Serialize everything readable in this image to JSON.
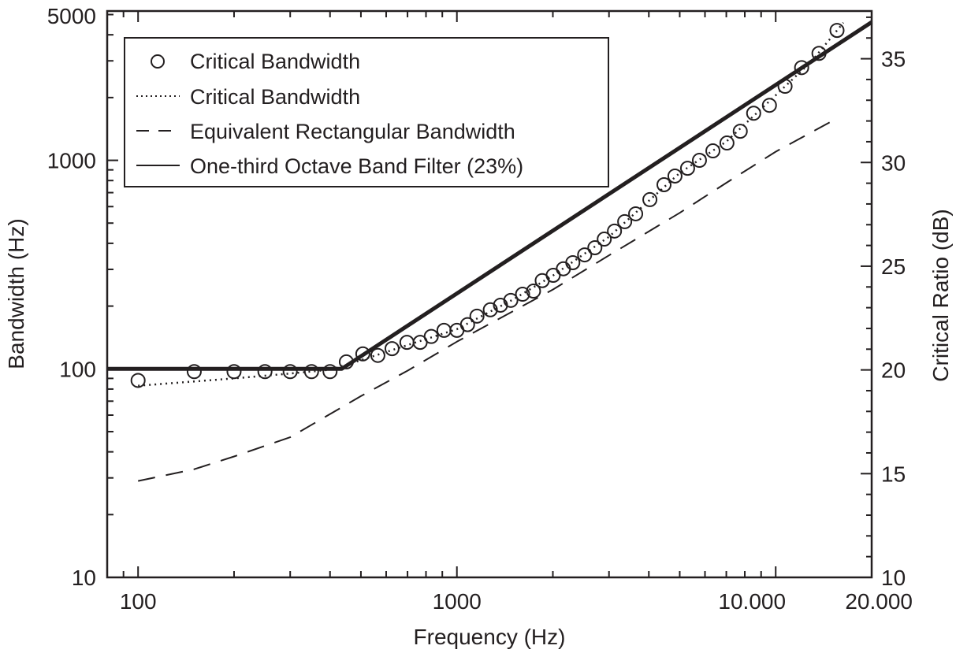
{
  "chart_data": {
    "type": "line",
    "xlabel": "Frequency (Hz)",
    "ylabel": "Bandwidth (Hz)",
    "y2label": "Critical Ratio (dB)",
    "x_scale": "log",
    "y_scale": "log",
    "xlim": [
      80,
      20000
    ],
    "ylim": [
      10,
      5200
    ],
    "y2lim": [
      10,
      37.3
    ],
    "x_ticks": [
      {
        "value": 100,
        "label": "100"
      },
      {
        "value": 1000,
        "label": "1000"
      },
      {
        "value": 10000,
        "label": "10.000"
      },
      {
        "value": 20000,
        "label": "20.000"
      }
    ],
    "y_ticks": [
      {
        "value": 10,
        "label": "10"
      },
      {
        "value": 100,
        "label": "100"
      },
      {
        "value": 1000,
        "label": "1000"
      },
      {
        "value": 5000,
        "label": "5000"
      }
    ],
    "y2_ticks": [
      {
        "value": 10,
        "label": "10"
      },
      {
        "value": 15,
        "label": "15"
      },
      {
        "value": 20,
        "label": "20"
      },
      {
        "value": 25,
        "label": "25"
      },
      {
        "value": 30,
        "label": "30"
      },
      {
        "value": 35,
        "label": "35"
      }
    ],
    "grid": false,
    "legend_position": "top-left",
    "color": "#231f20",
    "series": [
      {
        "name": "Critical Bandwidth",
        "style": "circles",
        "points": [
          [
            100,
            88
          ],
          [
            150,
            97
          ],
          [
            200,
            97
          ],
          [
            250,
            97
          ],
          [
            300,
            97
          ],
          [
            350,
            97
          ],
          [
            400,
            97
          ],
          [
            450,
            108
          ],
          [
            507,
            118
          ],
          [
            565,
            116
          ],
          [
            626,
            125
          ],
          [
            697,
            134
          ],
          [
            767,
            134
          ],
          [
            831,
            143
          ],
          [
            911,
            153
          ],
          [
            1000,
            153
          ],
          [
            1080,
            163
          ],
          [
            1156,
            179
          ],
          [
            1273,
            192
          ],
          [
            1370,
            202
          ],
          [
            1476,
            213
          ],
          [
            1607,
            228
          ],
          [
            1739,
            236
          ],
          [
            1852,
            265
          ],
          [
            2005,
            281
          ],
          [
            2158,
            302
          ],
          [
            2310,
            323
          ],
          [
            2516,
            352
          ],
          [
            2709,
            381
          ],
          [
            2899,
            419
          ],
          [
            3121,
            458
          ],
          [
            3360,
            508
          ],
          [
            3637,
            554
          ],
          [
            4030,
            648
          ],
          [
            4463,
            764
          ],
          [
            4831,
            841
          ],
          [
            5292,
            916
          ],
          [
            5765,
            1000
          ],
          [
            6353,
            1110
          ],
          [
            7032,
            1211
          ],
          [
            7741,
            1379
          ],
          [
            8529,
            1682
          ],
          [
            9557,
            1836
          ],
          [
            10700,
            2265
          ],
          [
            12060,
            2784
          ],
          [
            13670,
            3258
          ],
          [
            15570,
            4198
          ]
        ]
      },
      {
        "name": "Critical Bandwidth",
        "style": "dotted",
        "points": [
          [
            100,
            83
          ],
          [
            200,
            90
          ],
          [
            300,
            95
          ],
          [
            400,
            99
          ],
          [
            500,
            110
          ],
          [
            700,
            130
          ],
          [
            1000,
            155
          ],
          [
            1500,
            215
          ],
          [
            2000,
            280
          ],
          [
            3000,
            430
          ],
          [
            4000,
            640
          ],
          [
            5000,
            870
          ],
          [
            7000,
            1230
          ],
          [
            10000,
            2050
          ],
          [
            13000,
            3000
          ],
          [
            16300,
            4570
          ]
        ]
      },
      {
        "name": "Equivalent Rectangular Bandwidth",
        "style": "dashed",
        "points": [
          [
            100,
            29
          ],
          [
            150,
            33
          ],
          [
            200,
            38
          ],
          [
            300,
            47
          ],
          [
            500,
            74
          ],
          [
            700,
            98
          ],
          [
            1000,
            135
          ],
          [
            2000,
            240
          ],
          [
            3000,
            350
          ],
          [
            5000,
            560
          ],
          [
            7000,
            780
          ],
          [
            10000,
            1100
          ],
          [
            15700,
            1600
          ]
        ]
      },
      {
        "name": "One-third Octave Band Filter (23%)",
        "style": "solid-thick",
        "points": [
          [
            80,
            100
          ],
          [
            435,
            100
          ],
          [
            20000,
            4600
          ]
        ]
      }
    ]
  }
}
